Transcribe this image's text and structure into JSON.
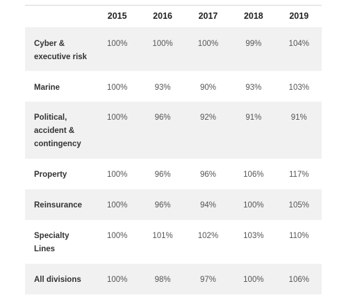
{
  "table": {
    "columns": [
      "2015",
      "2016",
      "2017",
      "2018",
      "2019"
    ],
    "rows": [
      {
        "label": "Cyber &\nexecutive risk",
        "values": [
          "100%",
          "100%",
          "100%",
          "99%",
          "104%"
        ]
      },
      {
        "label": "Marine",
        "values": [
          "100%",
          "93%",
          "90%",
          "93%",
          "103%"
        ]
      },
      {
        "label": "Political,\naccident &\ncontingency",
        "values": [
          "100%",
          "96%",
          "92%",
          "91%",
          "91%"
        ]
      },
      {
        "label": "Property",
        "values": [
          "100%",
          "96%",
          "96%",
          "106%",
          "117%"
        ]
      },
      {
        "label": "Reinsurance",
        "values": [
          "100%",
          "96%",
          "94%",
          "100%",
          "105%"
        ]
      },
      {
        "label": "Specialty\nLines",
        "values": [
          "100%",
          "101%",
          "102%",
          "103%",
          "110%"
        ]
      },
      {
        "label": "All divisions",
        "values": [
          "100%",
          "98%",
          "97%",
          "100%",
          "106%"
        ]
      }
    ]
  }
}
